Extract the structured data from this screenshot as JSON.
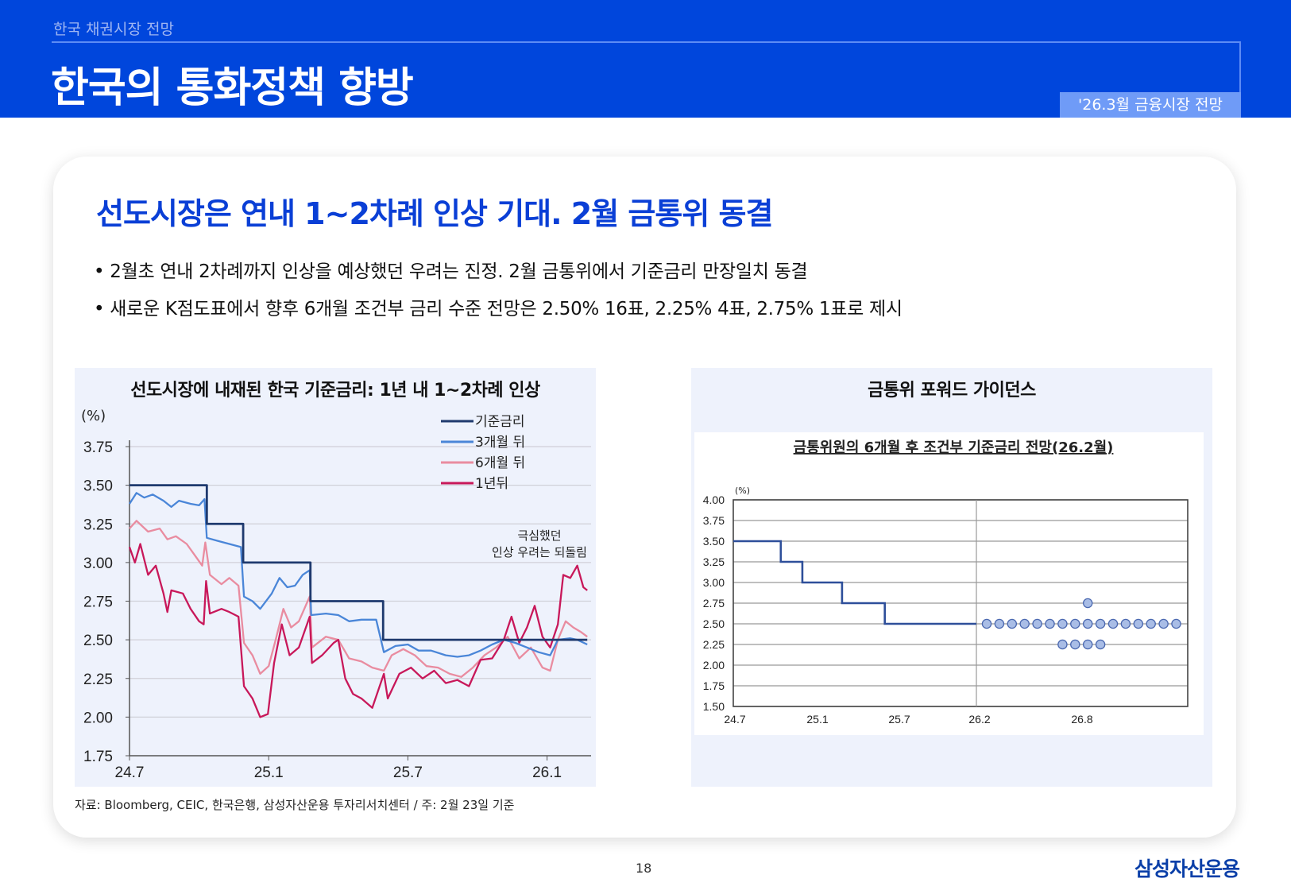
{
  "header": {
    "section": "한국 채권시장 전망",
    "title": "한국의 통화정책 향방",
    "tag": "'26.3월 금융시장 전망"
  },
  "content": {
    "headline": "선도시장은 연내 1~2차례 인상 기대. 2월 금통위 동결",
    "bullets": [
      "• 2월초 연내 2차례까지 인상을 예상했던 우려는 진정. 2월 금통위에서 기준금리 만장일치 동결",
      "• 새로운 K점도표에서 향후 6개월 조건부 금리 수준 전망은 2.50% 16표, 2.25% 4표, 2.75% 1표로 제시"
    ]
  },
  "footer": {
    "source": "자료: Bloomberg, CEIC, 한국은행, 삼성자산운용 투자리서치센터 / 주: 2월 23일 기준",
    "page": "18",
    "logo": "삼성자산운용"
  },
  "colors": {
    "header": "#0046dc",
    "accent": "#0a3fd6",
    "base": "#1f3a6e",
    "m3": "#4a86d8",
    "m6": "#e98ca0",
    "y1": "#c8185a",
    "dot_fill": "#a9bde6",
    "dot_stroke": "#4a68b0"
  },
  "chart_data": [
    {
      "type": "line",
      "title": "선도시장에 내재된 한국 기준금리: 1년 내 1~2차례 인상",
      "ylabel": "(%)",
      "ylim": [
        1.75,
        3.75
      ],
      "yticks": [
        "3.75",
        "3.50",
        "3.25",
        "3.00",
        "2.75",
        "2.50",
        "2.25",
        "2.00",
        "1.75"
      ],
      "xticks": [
        {
          "label": "24.7",
          "date": "2024-07-01"
        },
        {
          "label": "25.1",
          "date": "2025-01-01"
        },
        {
          "label": "25.7",
          "date": "2025-07-01"
        },
        {
          "label": "26.1",
          "date": "2026-01-01"
        }
      ],
      "grid": true,
      "legend_position": "top-right",
      "annotation": [
        "극심했던",
        "인상 우려는 되돌림"
      ],
      "series": [
        {
          "name": "기준금리",
          "step": true,
          "end": "2026-02-23",
          "points": [
            [
              "2024-07-01",
              3.5
            ],
            [
              "2024-10-11",
              3.25
            ],
            [
              "2024-11-28",
              3.0
            ],
            [
              "2025-02-25",
              2.75
            ],
            [
              "2025-05-29",
              2.5
            ]
          ]
        },
        {
          "name": "3개월 뒤",
          "points": [
            [
              "2024-07-01",
              3.38
            ],
            [
              "2024-07-10",
              3.45
            ],
            [
              "2024-07-20",
              3.42
            ],
            [
              "2024-08-01",
              3.44
            ],
            [
              "2024-08-15",
              3.4
            ],
            [
              "2024-08-25",
              3.36
            ],
            [
              "2024-09-05",
              3.4
            ],
            [
              "2024-09-20",
              3.38
            ],
            [
              "2024-10-01",
              3.37
            ],
            [
              "2024-10-08",
              3.41
            ],
            [
              "2024-10-11",
              3.16
            ],
            [
              "2024-10-25",
              3.14
            ],
            [
              "2024-11-10",
              3.12
            ],
            [
              "2024-11-25",
              3.1
            ],
            [
              "2024-11-29",
              2.78
            ],
            [
              "2024-12-10",
              2.75
            ],
            [
              "2024-12-20",
              2.7
            ],
            [
              "2025-01-05",
              2.8
            ],
            [
              "2025-01-15",
              2.9
            ],
            [
              "2025-01-25",
              2.84
            ],
            [
              "2025-02-05",
              2.85
            ],
            [
              "2025-02-15",
              2.92
            ],
            [
              "2025-02-24",
              2.95
            ],
            [
              "2025-02-26",
              2.66
            ],
            [
              "2025-03-15",
              2.67
            ],
            [
              "2025-04-01",
              2.66
            ],
            [
              "2025-04-15",
              2.62
            ],
            [
              "2025-05-01",
              2.63
            ],
            [
              "2025-05-20",
              2.63
            ],
            [
              "2025-05-30",
              2.42
            ],
            [
              "2025-06-15",
              2.46
            ],
            [
              "2025-07-01",
              2.47
            ],
            [
              "2025-07-15",
              2.43
            ],
            [
              "2025-08-01",
              2.43
            ],
            [
              "2025-08-20",
              2.4
            ],
            [
              "2025-09-05",
              2.39
            ],
            [
              "2025-09-20",
              2.4
            ],
            [
              "2025-10-05",
              2.43
            ],
            [
              "2025-10-20",
              2.47
            ],
            [
              "2025-11-05",
              2.5
            ],
            [
              "2025-11-20",
              2.48
            ],
            [
              "2025-12-05",
              2.45
            ],
            [
              "2025-12-20",
              2.42
            ],
            [
              "2026-01-05",
              2.4
            ],
            [
              "2026-01-15",
              2.5
            ],
            [
              "2026-02-01",
              2.51
            ],
            [
              "2026-02-10",
              2.5
            ],
            [
              "2026-02-23",
              2.47
            ]
          ]
        },
        {
          "name": "6개월 뒤",
          "points": [
            [
              "2024-07-01",
              3.22
            ],
            [
              "2024-07-10",
              3.27
            ],
            [
              "2024-07-25",
              3.2
            ],
            [
              "2024-08-10",
              3.22
            ],
            [
              "2024-08-20",
              3.15
            ],
            [
              "2024-09-01",
              3.17
            ],
            [
              "2024-09-15",
              3.12
            ],
            [
              "2024-09-25",
              3.05
            ],
            [
              "2024-10-05",
              2.98
            ],
            [
              "2024-10-09",
              3.13
            ],
            [
              "2024-10-15",
              2.92
            ],
            [
              "2024-10-30",
              2.86
            ],
            [
              "2024-11-10",
              2.9
            ],
            [
              "2024-11-22",
              2.85
            ],
            [
              "2024-11-29",
              2.48
            ],
            [
              "2024-12-10",
              2.4
            ],
            [
              "2024-12-20",
              2.28
            ],
            [
              "2024-12-31",
              2.33
            ],
            [
              "2025-01-10",
              2.5
            ],
            [
              "2025-01-20",
              2.7
            ],
            [
              "2025-01-30",
              2.58
            ],
            [
              "2025-02-10",
              2.62
            ],
            [
              "2025-02-24",
              2.78
            ],
            [
              "2025-02-27",
              2.45
            ],
            [
              "2025-03-15",
              2.52
            ],
            [
              "2025-04-01",
              2.5
            ],
            [
              "2025-04-15",
              2.38
            ],
            [
              "2025-05-01",
              2.36
            ],
            [
              "2025-05-15",
              2.32
            ],
            [
              "2025-05-30",
              2.3
            ],
            [
              "2025-06-10",
              2.4
            ],
            [
              "2025-06-25",
              2.44
            ],
            [
              "2025-07-10",
              2.4
            ],
            [
              "2025-07-25",
              2.33
            ],
            [
              "2025-08-10",
              2.32
            ],
            [
              "2025-08-25",
              2.28
            ],
            [
              "2025-09-10",
              2.26
            ],
            [
              "2025-09-25",
              2.32
            ],
            [
              "2025-10-10",
              2.4
            ],
            [
              "2025-10-25",
              2.45
            ],
            [
              "2025-11-10",
              2.52
            ],
            [
              "2025-11-25",
              2.38
            ],
            [
              "2025-12-10",
              2.45
            ],
            [
              "2025-12-25",
              2.32
            ],
            [
              "2026-01-05",
              2.3
            ],
            [
              "2026-01-15",
              2.5
            ],
            [
              "2026-01-25",
              2.62
            ],
            [
              "2026-02-05",
              2.58
            ],
            [
              "2026-02-15",
              2.55
            ],
            [
              "2026-02-23",
              2.52
            ]
          ]
        },
        {
          "name": "1년뒤",
          "points": [
            [
              "2024-07-01",
              3.1
            ],
            [
              "2024-07-08",
              3.0
            ],
            [
              "2024-07-15",
              3.12
            ],
            [
              "2024-07-25",
              2.92
            ],
            [
              "2024-08-05",
              2.98
            ],
            [
              "2024-08-15",
              2.8
            ],
            [
              "2024-08-20",
              2.68
            ],
            [
              "2024-08-25",
              2.82
            ],
            [
              "2024-09-10",
              2.8
            ],
            [
              "2024-09-20",
              2.7
            ],
            [
              "2024-10-01",
              2.62
            ],
            [
              "2024-10-07",
              2.6
            ],
            [
              "2024-10-10",
              2.88
            ],
            [
              "2024-10-15",
              2.67
            ],
            [
              "2024-10-30",
              2.7
            ],
            [
              "2024-11-10",
              2.68
            ],
            [
              "2024-11-22",
              2.65
            ],
            [
              "2024-11-29",
              2.2
            ],
            [
              "2024-12-10",
              2.12
            ],
            [
              "2024-12-20",
              2.0
            ],
            [
              "2024-12-30",
              2.02
            ],
            [
              "2025-01-08",
              2.35
            ],
            [
              "2025-01-18",
              2.6
            ],
            [
              "2025-01-28",
              2.4
            ],
            [
              "2025-02-10",
              2.45
            ],
            [
              "2025-02-24",
              2.65
            ],
            [
              "2025-02-27",
              2.35
            ],
            [
              "2025-03-10",
              2.4
            ],
            [
              "2025-03-25",
              2.48
            ],
            [
              "2025-04-01",
              2.5
            ],
            [
              "2025-04-10",
              2.25
            ],
            [
              "2025-04-20",
              2.15
            ],
            [
              "2025-05-01",
              2.12
            ],
            [
              "2025-05-15",
              2.06
            ],
            [
              "2025-05-30",
              2.28
            ],
            [
              "2025-06-05",
              2.12
            ],
            [
              "2025-06-20",
              2.28
            ],
            [
              "2025-07-05",
              2.32
            ],
            [
              "2025-07-20",
              2.25
            ],
            [
              "2025-08-05",
              2.3
            ],
            [
              "2025-08-20",
              2.22
            ],
            [
              "2025-09-05",
              2.24
            ],
            [
              "2025-09-20",
              2.2
            ],
            [
              "2025-10-05",
              2.37
            ],
            [
              "2025-10-20",
              2.38
            ],
            [
              "2025-11-05",
              2.5
            ],
            [
              "2025-11-15",
              2.65
            ],
            [
              "2025-11-25",
              2.48
            ],
            [
              "2025-12-05",
              2.58
            ],
            [
              "2025-12-15",
              2.72
            ],
            [
              "2025-12-25",
              2.52
            ],
            [
              "2026-01-05",
              2.45
            ],
            [
              "2026-01-15",
              2.6
            ],
            [
              "2026-01-22",
              2.92
            ],
            [
              "2026-02-01",
              2.9
            ],
            [
              "2026-02-10",
              2.98
            ],
            [
              "2026-02-18",
              2.84
            ],
            [
              "2026-02-23",
              2.82
            ]
          ]
        }
      ]
    },
    {
      "type": "scatter",
      "title": "금통위 포워드 가이던스",
      "subtitle": "금통위원의 6개월 후 조건부 기준금리 전망(26.2월)",
      "ylabel": "(%)",
      "ylim": [
        1.5,
        4.0
      ],
      "yticks": [
        "4.00",
        "3.75",
        "3.50",
        "3.25",
        "3.00",
        "2.75",
        "2.50",
        "2.25",
        "2.00",
        "1.75",
        "1.50"
      ],
      "xticks": [
        {
          "label": "24.7",
          "date": "2024-07-01"
        },
        {
          "label": "25.1",
          "date": "2025-01-01"
        },
        {
          "label": "25.7",
          "date": "2025-07-01"
        },
        {
          "label": "26.2",
          "date": "2026-02-01"
        },
        {
          "label": "26.8",
          "date": "2026-08-01"
        }
      ],
      "grid": true,
      "base_rate_steps": [
        [
          "2024-07-01",
          3.5
        ],
        [
          "2024-10-11",
          3.25
        ],
        [
          "2024-11-28",
          3.0
        ],
        [
          "2025-02-25",
          2.75
        ],
        [
          "2025-05-29",
          2.5
        ],
        [
          "2026-02-01",
          2.5
        ]
      ],
      "dots": [
        {
          "rate": 2.75,
          "votes": 1
        },
        {
          "rate": 2.5,
          "votes": 16
        },
        {
          "rate": 2.25,
          "votes": 4
        }
      ]
    }
  ]
}
